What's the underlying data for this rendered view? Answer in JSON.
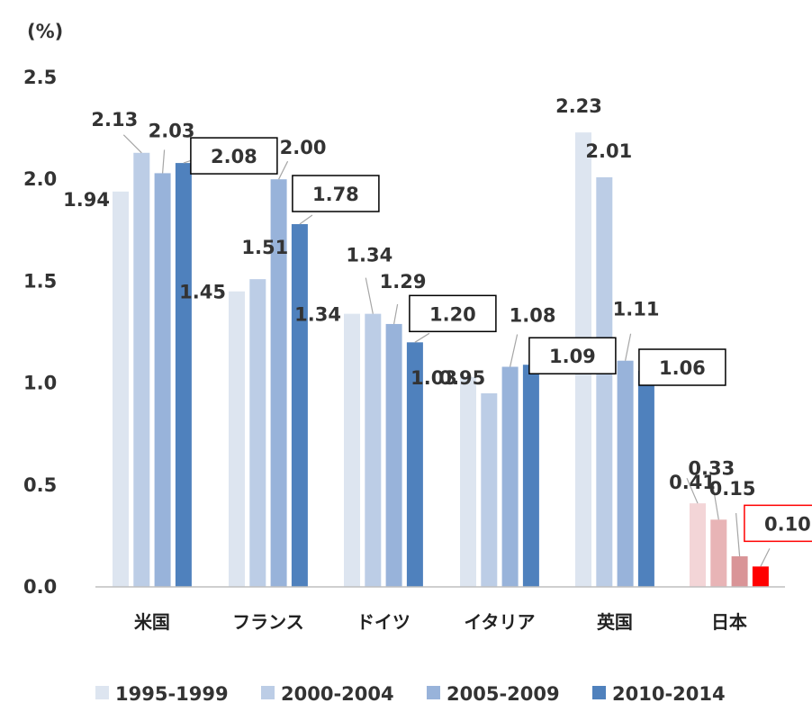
{
  "chart_data": {
    "type": "bar",
    "unit_label": "(%)",
    "categories": [
      "米国",
      "フランス",
      "ドイツ",
      "イタリア",
      "英国",
      "日本"
    ],
    "series": [
      {
        "name": "1995-1999",
        "values": [
          1.94,
          1.45,
          1.34,
          1.03,
          2.23,
          0.41
        ]
      },
      {
        "name": "2000-2004",
        "values": [
          2.13,
          1.51,
          1.34,
          0.95,
          2.01,
          0.33
        ]
      },
      {
        "name": "2005-2009",
        "values": [
          2.03,
          2.0,
          1.29,
          1.08,
          1.11,
          0.15
        ]
      },
      {
        "name": "2010-2014",
        "values": [
          2.08,
          1.78,
          1.2,
          1.09,
          1.06,
          0.1
        ]
      }
    ],
    "value_labels": [
      [
        "1.94",
        "1.45",
        "1.34",
        "1.03",
        "2.23",
        "0.41"
      ],
      [
        "2.13",
        "1.51",
        "1.34",
        "0.95",
        "2.01",
        "0.33"
      ],
      [
        "2.03",
        "2.00",
        "1.29",
        "1.08",
        "1.11",
        "0.15"
      ],
      [
        "2.08",
        "1.78",
        "1.20",
        "1.09",
        "1.06",
        "0.10"
      ]
    ],
    "ylim": [
      0,
      2.5
    ],
    "yticks": [
      "0.0",
      "0.5",
      "1.0",
      "1.5",
      "2.0",
      "2.5"
    ],
    "grid": false,
    "legend_position": "bottom",
    "series_colors": [
      "#dde5f0",
      "#bccde6",
      "#98b3da",
      "#4f81bd"
    ],
    "highlight_colors": [
      "#f3d5d7",
      "#e8b4b6",
      "#d99497",
      "#ff0000"
    ],
    "boxed_series": "2010-2014"
  }
}
